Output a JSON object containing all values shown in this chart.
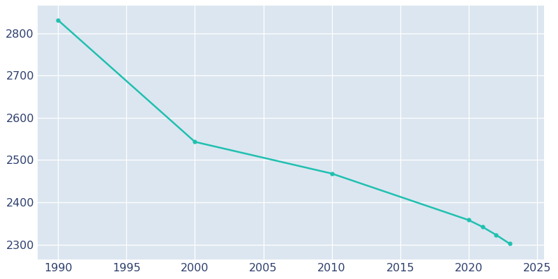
{
  "years": [
    1990,
    2000,
    2010,
    2020,
    2021,
    2022,
    2023
  ],
  "population": [
    2831,
    2543,
    2468,
    2358,
    2342,
    2323,
    2302
  ],
  "line_color": "#20c0b0",
  "marker_color": "#20c0b0",
  "axes_background_color": "#dce6f0",
  "figure_background_color": "#ffffff",
  "grid_color": "#ffffff",
  "xlim": [
    1988.5,
    2025.5
  ],
  "ylim": [
    2265,
    2865
  ],
  "xticks": [
    1990,
    1995,
    2000,
    2005,
    2010,
    2015,
    2020,
    2025
  ],
  "yticks": [
    2300,
    2400,
    2500,
    2600,
    2700,
    2800
  ],
  "tick_label_color": "#2e3f6e",
  "tick_fontsize": 11.5
}
